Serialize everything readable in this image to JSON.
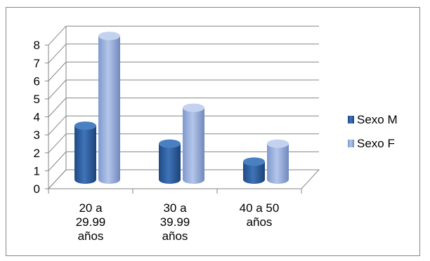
{
  "chart_data": {
    "type": "bar",
    "title": "",
    "xlabel": "",
    "ylabel": "",
    "ylim": [
      0,
      8
    ],
    "yticks": [
      "0",
      "1",
      "2",
      "3",
      "4",
      "5",
      "6",
      "7",
      "8"
    ],
    "categories": [
      [
        "20 a",
        "29.99",
        "años"
      ],
      [
        "30 a",
        "39.99",
        "años"
      ],
      [
        "40 a 50",
        "años"
      ]
    ],
    "series": [
      {
        "name": "Sexo M",
        "values": [
          3,
          2,
          1
        ],
        "color": "#2f5f9f"
      },
      {
        "name": "Sexo F",
        "values": [
          8,
          4,
          2
        ],
        "color": "#93a9d8"
      }
    ],
    "grid": true,
    "style": "3d-cylinder",
    "legend_position": "right"
  }
}
